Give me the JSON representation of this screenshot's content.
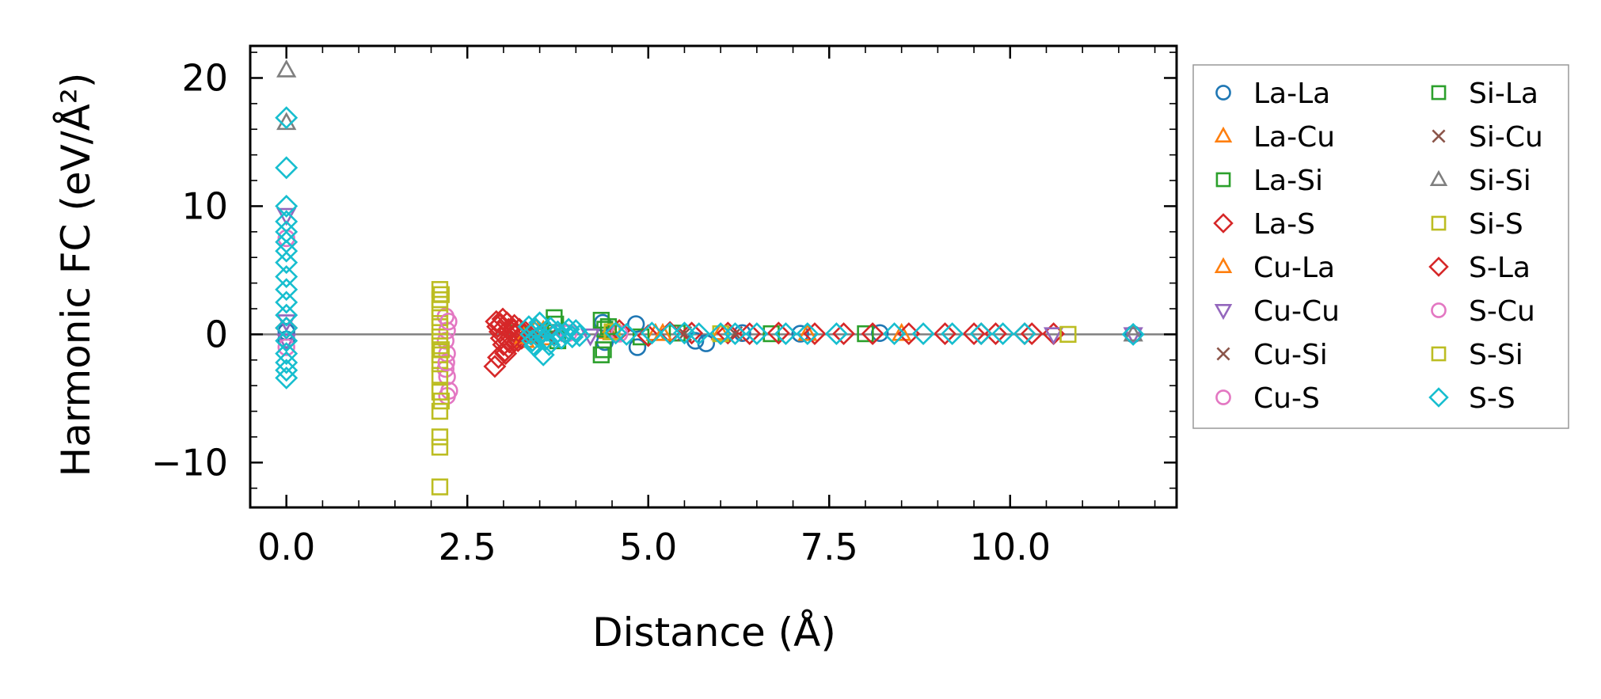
{
  "chart_data": {
    "type": "scatter",
    "title": "",
    "xlabel": "Distance (Å)",
    "ylabel": "Harmonic FC (eV/Å²)",
    "xlim": [
      -0.5,
      12.3
    ],
    "ylim": [
      -13.5,
      22.5
    ],
    "xticks": [
      0.0,
      2.5,
      5.0,
      7.5,
      10.0
    ],
    "xtick_labels": [
      "0.0",
      "2.5",
      "5.0",
      "7.5",
      "10.0"
    ],
    "yticks": [
      -10,
      0,
      10,
      20
    ],
    "ytick_labels": [
      "−10",
      "0",
      "10",
      "20"
    ],
    "zero_line": 0,
    "legend_position": "outside-right",
    "series": [
      {
        "name": "La-La",
        "marker": "circle",
        "color": "#1f77b4",
        "points": [
          [
            0,
            0.2
          ],
          [
            0,
            -0.4
          ],
          [
            4.37,
            0.9
          ],
          [
            4.4,
            -0.6
          ],
          [
            4.83,
            0.8
          ],
          [
            4.85,
            -1.0
          ],
          [
            5.65,
            -0.5
          ],
          [
            5.8,
            -0.7
          ],
          [
            6.3,
            0.1
          ],
          [
            7.1,
            0.05
          ],
          [
            8.2,
            0.1
          ],
          [
            11.7,
            0
          ]
        ]
      },
      {
        "name": "La-Cu",
        "marker": "triangle-up",
        "color": "#ff7f0e",
        "points": [
          [
            3.25,
            0.3
          ],
          [
            3.3,
            -0.5
          ],
          [
            3.45,
            0.5
          ],
          [
            3.6,
            -0.3
          ],
          [
            4.45,
            0.2
          ],
          [
            5.1,
            0.05
          ],
          [
            6.0,
            0.1
          ],
          [
            7.2,
            0.05
          ],
          [
            8.5,
            0.05
          ]
        ]
      },
      {
        "name": "La-Si",
        "marker": "square",
        "color": "#2ca02c",
        "points": [
          [
            3.2,
            0.1
          ],
          [
            3.7,
            1.3
          ],
          [
            3.75,
            -0.5
          ],
          [
            4.35,
            1.1
          ],
          [
            4.35,
            -1.6
          ],
          [
            4.4,
            0.4
          ],
          [
            4.9,
            -0.2
          ],
          [
            5.4,
            0.1
          ],
          [
            6.7,
            0.05
          ],
          [
            8.0,
            0.05
          ]
        ]
      },
      {
        "name": "La-S",
        "marker": "diamond",
        "color": "#d62728",
        "points": [
          [
            0,
            0.5
          ],
          [
            2.9,
            1.0
          ],
          [
            2.92,
            0.6
          ],
          [
            2.95,
            0.2
          ],
          [
            2.97,
            -0.3
          ],
          [
            3.0,
            -0.8
          ],
          [
            3.02,
            -1.3
          ],
          [
            3.05,
            0.9
          ],
          [
            3.07,
            0.4
          ],
          [
            3.1,
            -0.2
          ],
          [
            3.12,
            -0.7
          ],
          [
            3.15,
            0.7
          ],
          [
            3.18,
            0.0
          ],
          [
            3.2,
            -0.5
          ],
          [
            3.22,
            0.4
          ],
          [
            3.25,
            -0.3
          ],
          [
            2.88,
            -2.5
          ],
          [
            2.93,
            -1.8
          ],
          [
            2.99,
            1.2
          ],
          [
            3.03,
            -1.5
          ],
          [
            3.3,
            0.2
          ],
          [
            4.6,
            0.3
          ],
          [
            5.0,
            -0.1
          ],
          [
            5.3,
            0.15
          ],
          [
            5.6,
            0.1
          ],
          [
            6.1,
            0.1
          ],
          [
            6.4,
            0.05
          ],
          [
            6.8,
            0.1
          ],
          [
            7.3,
            0.05
          ],
          [
            7.7,
            0.05
          ],
          [
            8.1,
            0.05
          ],
          [
            8.6,
            0.05
          ],
          [
            9.1,
            0.05
          ],
          [
            9.5,
            0.05
          ],
          [
            9.8,
            0.05
          ],
          [
            10.3,
            0.05
          ],
          [
            10.6,
            0.05
          ]
        ]
      },
      {
        "name": "Cu-La",
        "marker": "triangle-up",
        "color": "#ff7f0e",
        "points": [
          [
            3.28,
            -0.2
          ],
          [
            3.55,
            0.3
          ],
          [
            4.5,
            0.1
          ],
          [
            5.2,
            0.05
          ]
        ]
      },
      {
        "name": "Cu-Cu",
        "marker": "triangle-down",
        "color": "#9467bd",
        "points": [
          [
            0,
            9.3
          ],
          [
            0,
            1.0
          ],
          [
            0,
            -0.5
          ],
          [
            3.8,
            0.2
          ],
          [
            4.2,
            -0.1
          ],
          [
            10.6,
            0
          ],
          [
            11.7,
            0
          ]
        ]
      },
      {
        "name": "Cu-Si",
        "marker": "x",
        "color": "#8c564b",
        "points": [
          [
            3.4,
            -0.3
          ],
          [
            3.6,
            0.2
          ],
          [
            5.5,
            0.05
          ],
          [
            6.2,
            0.05
          ]
        ]
      },
      {
        "name": "Cu-S",
        "marker": "circle",
        "color": "#e377c2",
        "points": [
          [
            0,
            7.5
          ],
          [
            0,
            -1.0
          ],
          [
            2.2,
            1.4
          ],
          [
            2.22,
            0.3
          ],
          [
            2.2,
            -0.5
          ],
          [
            2.22,
            -1.5
          ],
          [
            2.2,
            -2.7
          ],
          [
            2.22,
            -3.3
          ],
          [
            2.25,
            -4.4
          ],
          [
            2.22,
            -4.8
          ],
          [
            3.9,
            0.1
          ],
          [
            4.6,
            0.05
          ]
        ]
      },
      {
        "name": "Si-La",
        "marker": "square",
        "color": "#2ca02c",
        "points": [
          [
            3.72,
            0.8
          ],
          [
            4.38,
            -1.2
          ],
          [
            4.45,
            0.6
          ]
        ]
      },
      {
        "name": "Si-Cu",
        "marker": "x",
        "color": "#8c564b",
        "points": [
          [
            3.42,
            0.1
          ],
          [
            3.62,
            -0.2
          ]
        ]
      },
      {
        "name": "Si-Si",
        "marker": "triangle-up",
        "color": "#7f7f7f",
        "points": [
          [
            0,
            20.6
          ],
          [
            0,
            16.5
          ],
          [
            11.7,
            0
          ]
        ]
      },
      {
        "name": "Si-S",
        "marker": "square",
        "color": "#bcbd22",
        "points": [
          [
            2.12,
            3.5
          ],
          [
            2.12,
            2.7
          ],
          [
            2.12,
            2.0
          ],
          [
            2.12,
            1.3
          ],
          [
            2.12,
            0.6
          ],
          [
            2.12,
            -0.2
          ],
          [
            2.12,
            -0.9
          ],
          [
            2.12,
            -1.6
          ],
          [
            2.12,
            -2.3
          ],
          [
            2.12,
            -3.2
          ],
          [
            2.12,
            -4.5
          ],
          [
            2.12,
            -6.0
          ],
          [
            2.12,
            -8.0
          ],
          [
            2.12,
            -8.8
          ],
          [
            2.12,
            -11.9
          ],
          [
            4.5,
            0.2
          ],
          [
            6.0,
            0.05
          ],
          [
            10.8,
            0
          ]
        ]
      },
      {
        "name": "S-La",
        "marker": "diamond",
        "color": "#d62728",
        "points": [
          [
            2.96,
            0.8
          ],
          [
            3.08,
            -0.6
          ],
          [
            3.14,
            0.3
          ],
          [
            9.6,
            0.05
          ],
          [
            10.2,
            0.05
          ]
        ]
      },
      {
        "name": "S-Cu",
        "marker": "circle",
        "color": "#e377c2",
        "points": [
          [
            2.24,
            1.0
          ],
          [
            2.21,
            -2.2
          ]
        ]
      },
      {
        "name": "S-Si",
        "marker": "square",
        "color": "#bcbd22",
        "points": [
          [
            2.14,
            3.1
          ],
          [
            2.14,
            -1.2
          ],
          [
            2.14,
            -5.2
          ]
        ]
      },
      {
        "name": "S-S",
        "marker": "diamond",
        "color": "#17becf",
        "points": [
          [
            0,
            16.9
          ],
          [
            0,
            13.0
          ],
          [
            0,
            10.0
          ],
          [
            0,
            8.8
          ],
          [
            0,
            8.0
          ],
          [
            0,
            7.2
          ],
          [
            0,
            6.5
          ],
          [
            0,
            5.6
          ],
          [
            0,
            4.5
          ],
          [
            0,
            3.5
          ],
          [
            0,
            2.5
          ],
          [
            0,
            1.5
          ],
          [
            0,
            0.5
          ],
          [
            0,
            -0.5
          ],
          [
            0,
            -1.5
          ],
          [
            0,
            -2.2
          ],
          [
            0,
            -2.8
          ],
          [
            0,
            -3.4
          ],
          [
            3.35,
            0.6
          ],
          [
            3.38,
            0.0
          ],
          [
            3.4,
            -0.5
          ],
          [
            3.43,
            -0.9
          ],
          [
            3.45,
            0.4
          ],
          [
            3.48,
            -0.2
          ],
          [
            3.5,
            0.9
          ],
          [
            3.55,
            -1.6
          ],
          [
            3.58,
            -0.4
          ],
          [
            3.6,
            0.3
          ],
          [
            3.63,
            -0.8
          ],
          [
            3.65,
            0.5
          ],
          [
            3.7,
            -0.1
          ],
          [
            3.75,
            0.2
          ],
          [
            3.8,
            -0.3
          ],
          [
            3.85,
            0.1
          ],
          [
            3.9,
            0.4
          ],
          [
            3.95,
            -0.2
          ],
          [
            4.0,
            0.3
          ],
          [
            4.05,
            -0.1
          ],
          [
            4.55,
            0.1
          ],
          [
            4.7,
            0.0
          ],
          [
            5.05,
            0.1
          ],
          [
            5.3,
            0.05
          ],
          [
            5.5,
            0.1
          ],
          [
            5.7,
            0.05
          ],
          [
            6.0,
            0.05
          ],
          [
            6.2,
            0.05
          ],
          [
            6.5,
            0.05
          ],
          [
            6.9,
            0.05
          ],
          [
            7.2,
            0.05
          ],
          [
            7.6,
            0.05
          ],
          [
            8.4,
            0.05
          ],
          [
            8.8,
            0.05
          ],
          [
            9.2,
            0.05
          ],
          [
            9.6,
            0.05
          ],
          [
            9.9,
            0.05
          ],
          [
            10.2,
            0.05
          ],
          [
            11.7,
            0
          ]
        ]
      }
    ]
  }
}
